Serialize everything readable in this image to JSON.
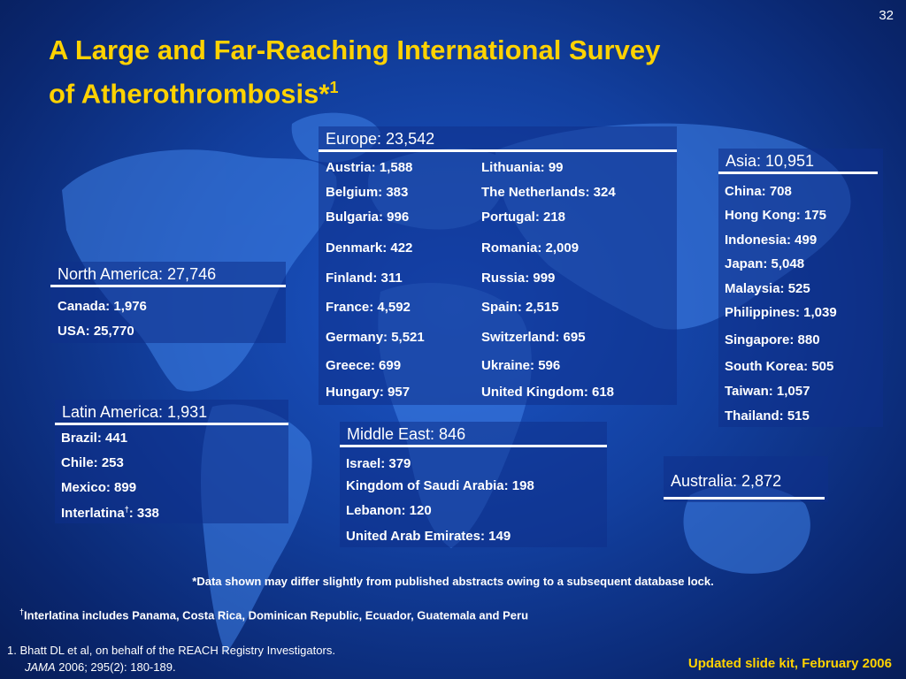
{
  "slide_number": "32",
  "title": {
    "line1": "A Large and Far-Reaching International Survey",
    "line2": "of Atherothrombosis*",
    "sup": "1"
  },
  "europe": {
    "header": "Europe: 23,542",
    "col1": [
      "Austria: 1,588",
      "Belgium: 383",
      "Bulgaria: 996",
      "Denmark: 422",
      "Finland: 311",
      "France: 4,592",
      "Germany: 5,521",
      "Greece: 699",
      "Hungary: 957"
    ],
    "col2": [
      "Lithuania: 99",
      "The Netherlands: 324",
      "Portugal: 218",
      "Romania: 2,009",
      "Russia: 999",
      "Spain: 2,515",
      "Switzerland: 695",
      "Ukraine: 596",
      "United Kingdom: 618"
    ]
  },
  "asia": {
    "header": "Asia: 10,951",
    "items": [
      "China: 708",
      "Hong Kong: 175",
      "Indonesia: 499",
      "Japan: 5,048",
      "Malaysia: 525",
      "Philippines: 1,039",
      "Singapore: 880",
      "South Korea: 505",
      "Taiwan: 1,057",
      "Thailand: 515"
    ]
  },
  "north_america": {
    "header": "North America: 27,746",
    "items": [
      "Canada: 1,976",
      "USA: 25,770"
    ]
  },
  "latin_america": {
    "header": "Latin America: 1,931",
    "items": [
      "Brazil: 441",
      "Chile: 253",
      "Mexico: 899"
    ],
    "interlatina_label": "Interlatina",
    "interlatina_mark": "†",
    "interlatina_value": ": 338"
  },
  "middle_east": {
    "header": "Middle East: 846",
    "items": [
      "Israel: 379",
      "Kingdom of Saudi Arabia: 198",
      "Lebanon: 120",
      "United Arab Emirates: 149"
    ]
  },
  "australia": {
    "header": "Australia: 2,872"
  },
  "footnotes": {
    "database": "*Data shown may differ slightly from published abstracts owing to a subsequent database lock.",
    "interlatina_mark": "†",
    "interlatina": "Interlatina includes Panama, Costa Rica, Dominican Republic, Ecuador, Guatemala and Peru"
  },
  "reference": {
    "line1": "1. Bhatt DL et al, on behalf of the REACH Registry Investigators.",
    "journal": "JAMA",
    "citation": " 2006; 295(2): 180-189."
  },
  "updated": "Updated slide kit, February 2006",
  "colors": {
    "title": "#ffd200",
    "background": "#123f9e",
    "map": "#3a7ae0"
  }
}
